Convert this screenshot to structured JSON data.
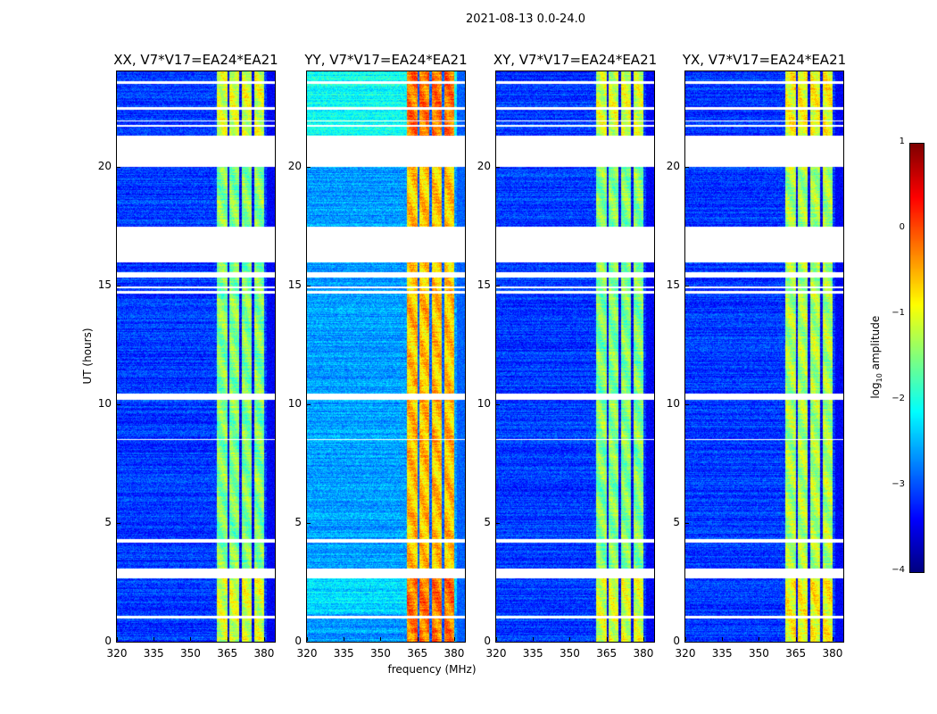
{
  "chart_data": {
    "type": "heatmap",
    "title": "2021-08-13 0.0-24.0",
    "xlabel": "frequency (MHz)",
    "ylabel": "UT (hours)",
    "xlim": [
      320,
      384.4
    ],
    "ylim": [
      0,
      24
    ],
    "xticks": [
      "320",
      "335",
      "350",
      "365",
      "380"
    ],
    "xtick_values": [
      320,
      335,
      350,
      365,
      380
    ],
    "yticks": [
      "0",
      "5",
      "10",
      "15",
      "20"
    ],
    "ytick_values": [
      0,
      5,
      10,
      15,
      20
    ],
    "colorbar": {
      "label_prefix": "log",
      "label_sub": "10",
      "label_suffix": " amplitude",
      "range": [
        -4,
        1
      ],
      "ticks": [
        "1",
        "0",
        "−1",
        "−2",
        "−3",
        "−4"
      ],
      "tick_values": [
        1,
        0,
        -1,
        -2,
        -3,
        -4
      ],
      "colormap": "jet"
    },
    "flagged_time_ranges_hours": [
      [
        23.5,
        23.62
      ],
      [
        22.4,
        22.52
      ],
      [
        21.9,
        21.95
      ],
      [
        21.7,
        21.75
      ],
      [
        20.0,
        21.3
      ],
      [
        17.3,
        17.5
      ],
      [
        16.0,
        17.3
      ],
      [
        15.35,
        15.55
      ],
      [
        14.65,
        14.78
      ],
      [
        14.9,
        14.95
      ],
      [
        10.2,
        10.45
      ],
      [
        8.5,
        8.55
      ],
      [
        4.2,
        4.35
      ],
      [
        2.7,
        3.1
      ],
      [
        1.0,
        1.12
      ]
    ],
    "band_channels_mhz": [
      [
        360.7,
        365
      ],
      [
        365.8,
        369.8
      ],
      [
        370.8,
        374.8
      ],
      [
        375.8,
        379.8
      ]
    ],
    "panels": [
      {
        "title": "XX, V7*V17=EA24*EA21",
        "background_level": -3.1,
        "band_level": -1.5
      },
      {
        "title": "YY, V7*V17=EA24*EA21",
        "background_level": -2.6,
        "band_level": -0.6
      },
      {
        "title": "XY, V7*V17=EA24*EA21",
        "background_level": -3.1,
        "band_level": -1.5
      },
      {
        "title": "YX, V7*V17=EA24*EA21",
        "background_level": -3.1,
        "band_level": -1.3
      }
    ]
  }
}
